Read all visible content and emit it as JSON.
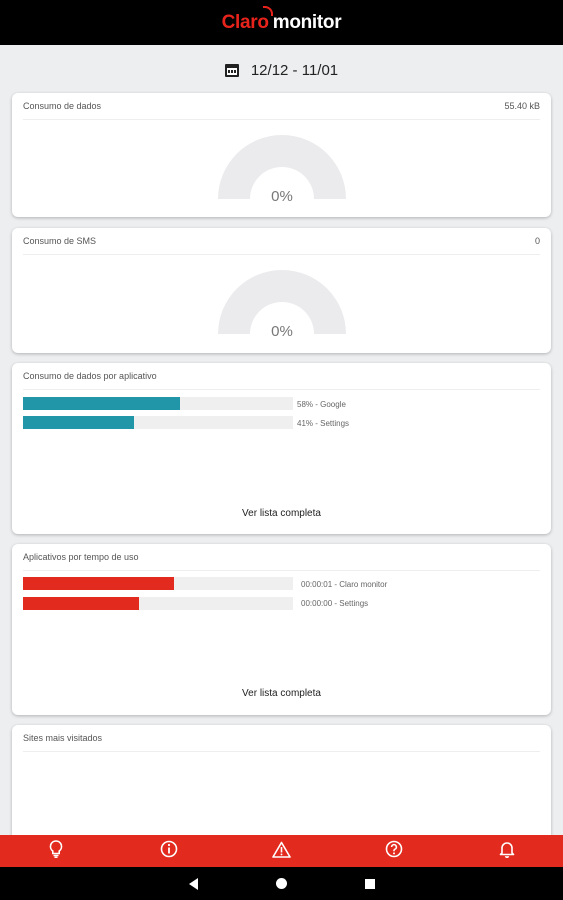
{
  "header": {
    "logo_brand": "Claro",
    "logo_product": "monitor"
  },
  "date_range": "12/12 - 11/01",
  "data_usage": {
    "title": "Consumo de dados",
    "total": "55.40 kB",
    "percent_label": "0%"
  },
  "sms_usage": {
    "title": "Consumo de SMS",
    "total": "0",
    "percent_label": "0%"
  },
  "data_by_app": {
    "title": "Consumo de dados por aplicativo",
    "items": [
      {
        "label": "58% - Google",
        "fraction": 0.58
      },
      {
        "label": "41% - Settings",
        "fraction": 0.41
      }
    ],
    "link": "Ver lista completa",
    "color": "#2196a8"
  },
  "apps_by_time": {
    "title": "Aplicativos por tempo de uso",
    "items": [
      {
        "label": "00:00:01 - Claro monitor",
        "fraction": 0.56
      },
      {
        "label": "00:00:00 - Settings",
        "fraction": 0.43
      }
    ],
    "link": "Ver lista completa",
    "color": "#e22a1e"
  },
  "top_sites": {
    "title": "Sites mais visitados"
  },
  "bottom_nav": {
    "icons": [
      "lightbulb-icon",
      "info-icon",
      "warning-icon",
      "help-icon",
      "bell-icon"
    ],
    "color": "#e22a1e"
  }
}
